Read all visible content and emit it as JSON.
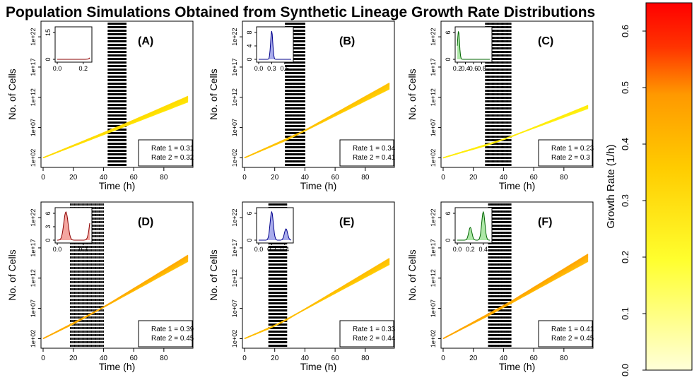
{
  "title": "Population Simulations Obtained from Synthetic Lineage Growth Rate Distributions",
  "colors": {
    "low": "#ffffd9",
    "high": "#ff0000",
    "curve_palette": [
      "#ffffcc",
      "#ffff33",
      "#f5f500",
      "#ffcc00",
      "#ffa500",
      "#ff6a00",
      "#ff0000"
    ],
    "red_inset": "#f4a6a0",
    "blue_inset": "#a9acec",
    "green_inset": "#aee8a8"
  },
  "colorbar": {
    "label": "Growth Rate (1/h)",
    "ticks": [
      "0.0",
      "0.1",
      "0.2",
      "0.3",
      "0.4",
      "0.5",
      "0.6"
    ],
    "range": [
      0,
      0.65
    ]
  },
  "chart_data": [
    {
      "type": "line",
      "panel": "(A)",
      "xlabel": "Time (h)",
      "ylabel": "No. of Cells",
      "xlim": [
        0,
        96
      ],
      "ylog": true,
      "xticks": [
        "0",
        "20",
        "40",
        "60",
        "80"
      ],
      "yticks": [
        "1e+02",
        "1e+07",
        "1e+12",
        "1e+17",
        "1e+22"
      ],
      "rate1": 0.31,
      "rate2": 0.32,
      "rate1_text": "Rate 1 = 0.31",
      "rate2_text": "Rate 2 = 0.32",
      "switch_time_range": [
        43,
        55
      ],
      "inset": {
        "color": "red",
        "peaks": [
          0.31
        ],
        "xticks": [
          "0.0",
          "0.2"
        ],
        "yticks": [
          "0",
          "15"
        ]
      }
    },
    {
      "type": "line",
      "panel": "(B)",
      "xlabel": "Time (h)",
      "ylabel": "No. of Cells",
      "xlim": [
        0,
        96
      ],
      "ylog": true,
      "xticks": [
        "0",
        "20",
        "40",
        "60",
        "80"
      ],
      "yticks": [
        "1e+02",
        "1e+07",
        "1e+12",
        "1e+17",
        "1e+22"
      ],
      "rate1": 0.34,
      "rate2": 0.41,
      "rate1_text": "Rate 1 = 0.34",
      "rate2_text": "Rate 2 = 0.41",
      "switch_time_range": [
        27,
        40
      ],
      "inset": {
        "color": "blue",
        "peaks": [
          0.3
        ],
        "xticks": [
          "0.0",
          "0.3",
          "0.6"
        ],
        "yticks": [
          "0",
          "4",
          "8"
        ]
      }
    },
    {
      "type": "line",
      "panel": "(C)",
      "xlabel": "Time (h)",
      "ylabel": "No. of Cells",
      "xlim": [
        0,
        96
      ],
      "ylog": true,
      "xticks": [
        "0",
        "20",
        "40",
        "60",
        "80"
      ],
      "yticks": [
        "1e+02",
        "1e+07",
        "1e+12",
        "1e+17",
        "1e+22"
      ],
      "rate1": 0.23,
      "rate2": 0.3,
      "rate1_text": "Rate 1 = 0.23",
      "rate2_text": "Rate 2 = 0.3",
      "switch_time_range": [
        28,
        45
      ],
      "inset": {
        "color": "green",
        "peaks": [
          0.23
        ],
        "xticks": [
          "0.2",
          "0.4",
          "0.6",
          "0.8"
        ],
        "yticks": [
          "0",
          "6"
        ]
      }
    },
    {
      "type": "line",
      "panel": "(D)",
      "xlabel": "Time (h)",
      "ylabel": "No. of Cells",
      "xlim": [
        0,
        96
      ],
      "ylog": true,
      "xticks": [
        "0",
        "20",
        "40",
        "60",
        "80"
      ],
      "yticks": [
        "1e+02",
        "1e+07",
        "1e+12",
        "1e+17",
        "1e+22"
      ],
      "rate1": 0.39,
      "rate2": 0.45,
      "rate1_text": "Rate 1 = 0.39",
      "rate2_text": "Rate 2 = 0.45",
      "switch_time_range": [
        18,
        40
      ],
      "inset": {
        "color": "red",
        "peaks": [
          0.1,
          0.4
        ],
        "xticks": [
          "0.0",
          "0.3"
        ],
        "yticks": [
          "0",
          "3",
          "6"
        ]
      }
    },
    {
      "type": "line",
      "panel": "(E)",
      "xlabel": "Time (h)",
      "ylabel": "No. of Cells",
      "xlim": [
        0,
        96
      ],
      "ylog": true,
      "xticks": [
        "0",
        "20",
        "40",
        "60",
        "80"
      ],
      "yticks": [
        "1e+02",
        "1e+07",
        "1e+12",
        "1e+17",
        "1e+22"
      ],
      "rate1": 0.33,
      "rate2": 0.44,
      "rate1_text": "Rate 1 = 0.33",
      "rate2_text": "Rate 2 = 0.44",
      "switch_time_range": [
        16,
        28
      ],
      "inset": {
        "color": "blue",
        "peaks": [
          0.2,
          0.42
        ],
        "xticks": [
          "0.0",
          "0.2",
          "0.4"
        ],
        "yticks": [
          "0",
          "6"
        ]
      }
    },
    {
      "type": "line",
      "panel": "(F)",
      "xlabel": "Time (h)",
      "ylabel": "No. of Cells",
      "xlim": [
        0,
        96
      ],
      "ylog": true,
      "xticks": [
        "0",
        "20",
        "40",
        "60",
        "80"
      ],
      "yticks": [
        "1e+02",
        "1e+07",
        "1e+12",
        "1e+17",
        "1e+22"
      ],
      "rate1": 0.41,
      "rate2": 0.45,
      "rate1_text": "Rate 1 = 0.41",
      "rate2_text": "Rate 2 = 0.45",
      "switch_time_range": [
        30,
        45
      ],
      "inset": {
        "color": "green",
        "peaks": [
          0.2,
          0.4
        ],
        "xticks": [
          "0.0",
          "0.2",
          "0.4"
        ],
        "yticks": [
          "0",
          "6"
        ]
      }
    }
  ]
}
